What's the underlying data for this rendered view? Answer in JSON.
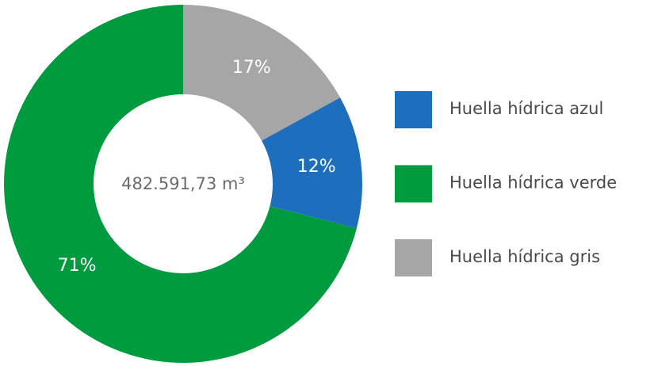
{
  "chart_data": {
    "type": "donut",
    "categories": [
      "Huella hídrica azul",
      "Huella hídrica verde",
      "Huella hídrica gris"
    ],
    "values": [
      12,
      71,
      17
    ],
    "value_labels": [
      "12%",
      "71%",
      "17%"
    ],
    "colors": [
      "#1d6fbd",
      "#009b3e",
      "#a6a6a6"
    ],
    "center_label": "482.591,73 m³",
    "legend": "right"
  }
}
